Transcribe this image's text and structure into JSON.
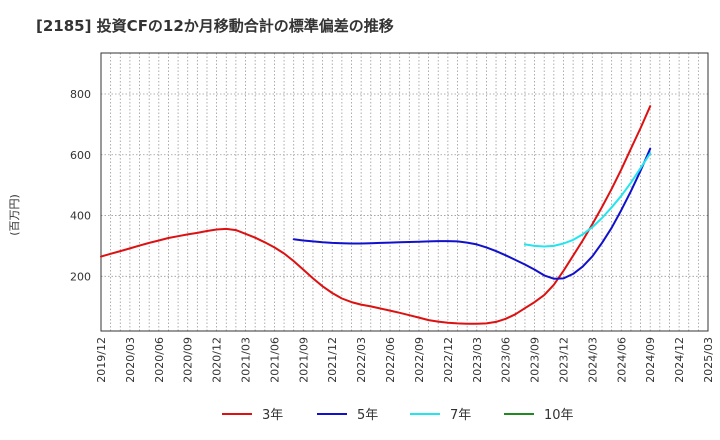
{
  "chart_data": {
    "type": "line",
    "title": "[2185]  投資CFの12か月移動合計の標準偏差の推移",
    "ylabel": "(百万円)",
    "xlabel": "",
    "ylim": [
      20,
      935
    ],
    "yticks": [
      200,
      400,
      600,
      800
    ],
    "x_ticks": [
      "2019/12",
      "2020/03",
      "2020/06",
      "2020/09",
      "2020/12",
      "2021/03",
      "2021/06",
      "2021/09",
      "2021/12",
      "2022/03",
      "2022/06",
      "2022/09",
      "2022/12",
      "2023/03",
      "2023/06",
      "2023/09",
      "2023/12",
      "2024/03",
      "2024/06",
      "2024/09",
      "2024/12",
      "2025/03"
    ],
    "grid": true,
    "legend_position": "bottom",
    "series": [
      {
        "name": "3年",
        "color": "#dd1111",
        "x": [
          "2019/12",
          "2020/01",
          "2020/02",
          "2020/03",
          "2020/04",
          "2020/05",
          "2020/06",
          "2020/07",
          "2020/08",
          "2020/09",
          "2020/10",
          "2020/11",
          "2020/12",
          "2021/01",
          "2021/02",
          "2021/03",
          "2021/04",
          "2021/05",
          "2021/06",
          "2021/07",
          "2021/08",
          "2021/09",
          "2021/10",
          "2021/11",
          "2021/12",
          "2022/01",
          "2022/02",
          "2022/03",
          "2022/04",
          "2022/05",
          "2022/06",
          "2022/07",
          "2022/08",
          "2022/09",
          "2022/10",
          "2022/11",
          "2022/12",
          "2023/01",
          "2023/02",
          "2023/03",
          "2023/04",
          "2023/05",
          "2023/06",
          "2023/07",
          "2023/08",
          "2023/09",
          "2023/10",
          "2023/11",
          "2023/12",
          "2024/01",
          "2024/02",
          "2024/03",
          "2024/04",
          "2024/05",
          "2024/06",
          "2024/07",
          "2024/08",
          "2024/09"
        ],
        "values": [
          265,
          274,
          283,
          292,
          301,
          310,
          318,
          326,
          332,
          338,
          343,
          349,
          354,
          356,
          352,
          340,
          327,
          312,
          295,
          275,
          250,
          222,
          193,
          167,
          145,
          127,
          115,
          107,
          101,
          94,
          87,
          80,
          72,
          64,
          56,
          51,
          47,
          45,
          44,
          44,
          45,
          50,
          60,
          75,
          95,
          115,
          138,
          172,
          218,
          268,
          318,
          372,
          428,
          488,
          552,
          620,
          688,
          760
        ],
        "values_note": ""
      },
      {
        "name": "5年",
        "color": "#1111cc",
        "x": [
          "2021/08",
          "2021/09",
          "2021/10",
          "2021/11",
          "2021/12",
          "2022/01",
          "2022/02",
          "2022/03",
          "2022/04",
          "2022/05",
          "2022/06",
          "2022/07",
          "2022/08",
          "2022/09",
          "2022/10",
          "2022/11",
          "2022/12",
          "2023/01",
          "2023/02",
          "2023/03",
          "2023/04",
          "2023/05",
          "2023/06",
          "2023/07",
          "2023/08",
          "2023/09",
          "2023/10",
          "2023/11",
          "2023/12",
          "2024/01",
          "2024/02",
          "2024/03",
          "2024/04",
          "2024/05",
          "2024/06",
          "2024/07",
          "2024/08",
          "2024/09"
        ],
        "values": [
          322,
          318,
          315,
          312,
          310,
          309,
          308,
          308,
          309,
          310,
          311,
          312,
          313,
          314,
          315,
          316,
          316,
          315,
          311,
          305,
          295,
          283,
          269,
          254,
          239,
          222,
          203,
          192,
          193,
          208,
          232,
          266,
          310,
          360,
          418,
          480,
          548,
          620
        ]
      },
      {
        "name": "7年",
        "color": "#22e5ee",
        "x": [
          "2023/08",
          "2023/09",
          "2023/10",
          "2023/11",
          "2023/12",
          "2024/01",
          "2024/02",
          "2024/03",
          "2024/04",
          "2024/05",
          "2024/06",
          "2024/07",
          "2024/08",
          "2024/09"
        ],
        "values": [
          305,
          300,
          298,
          300,
          308,
          320,
          338,
          362,
          392,
          427,
          465,
          508,
          556,
          605
        ]
      },
      {
        "name": "10年",
        "color": "#228822",
        "x": [],
        "values": []
      }
    ]
  }
}
